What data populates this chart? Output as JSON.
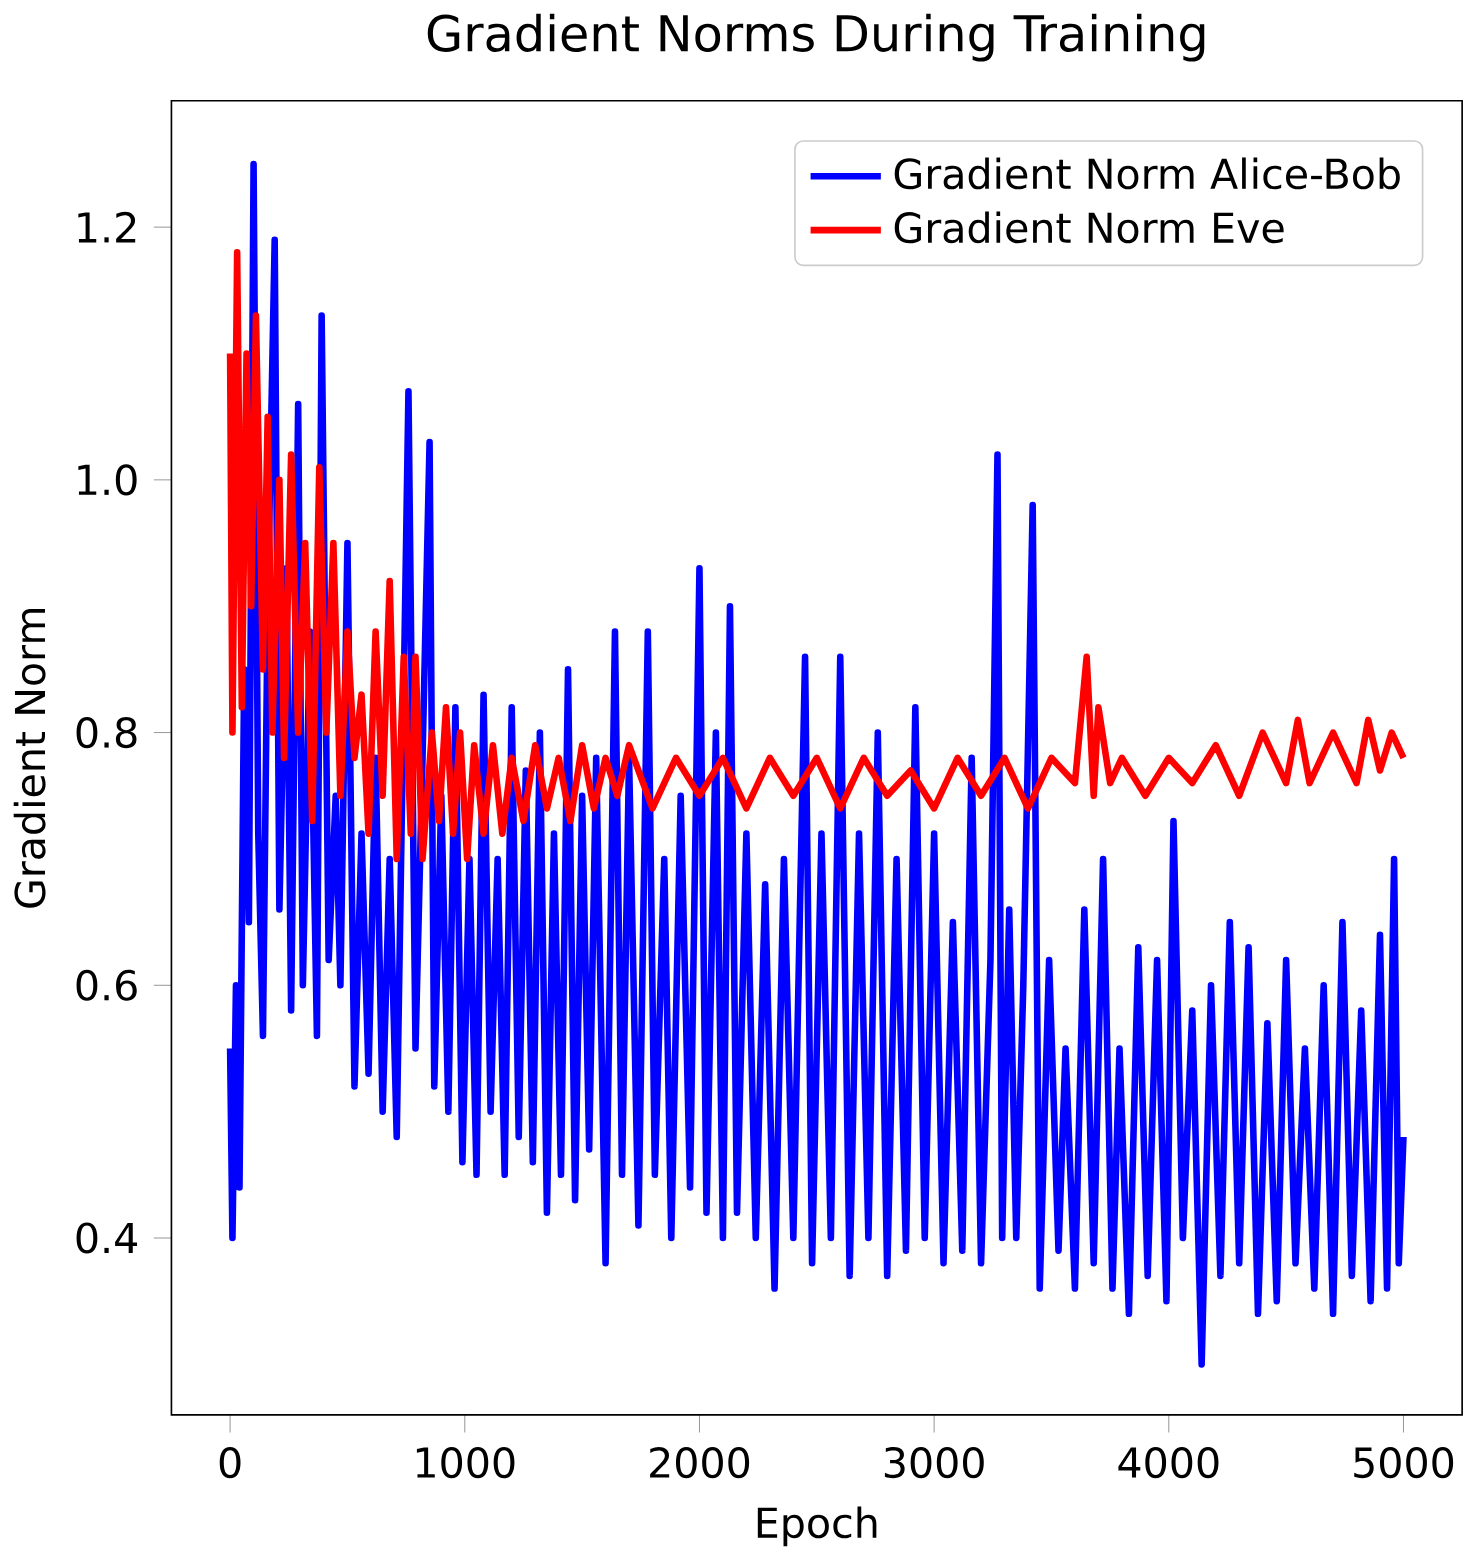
{
  "chart_data": {
    "type": "line",
    "title": "Gradient Norms During Training",
    "xlabel": "Epoch",
    "ylabel": "Gradient Norm",
    "xlim": [
      -250,
      5250
    ],
    "ylim": [
      0.26,
      1.3
    ],
    "xticks": [
      0,
      1000,
      2000,
      3000,
      4000,
      5000
    ],
    "yticks": [
      0.4,
      0.6,
      0.8,
      {
        "value": 1.0,
        "label": "1.0"
      },
      1.2
    ],
    "legend": "top right",
    "grid": false,
    "series": [
      {
        "name": "Gradient Norm Alice-Bob",
        "color": "#0000ff",
        "x": [
          0,
          10,
          25,
          40,
          60,
          80,
          100,
          120,
          140,
          160,
          190,
          210,
          240,
          260,
          290,
          310,
          340,
          370,
          390,
          420,
          450,
          470,
          500,
          530,
          560,
          590,
          620,
          650,
          680,
          710,
          760,
          790,
          820,
          850,
          870,
          900,
          930,
          960,
          990,
          1020,
          1050,
          1080,
          1110,
          1140,
          1170,
          1200,
          1230,
          1260,
          1290,
          1320,
          1350,
          1380,
          1410,
          1440,
          1470,
          1500,
          1530,
          1560,
          1600,
          1640,
          1670,
          1700,
          1740,
          1780,
          1810,
          1850,
          1880,
          1920,
          1960,
          2000,
          2030,
          2070,
          2100,
          2130,
          2160,
          2200,
          2240,
          2280,
          2320,
          2360,
          2400,
          2450,
          2480,
          2520,
          2560,
          2600,
          2640,
          2680,
          2720,
          2760,
          2800,
          2840,
          2880,
          2920,
          2960,
          3000,
          3040,
          3080,
          3120,
          3160,
          3200,
          3240,
          3270,
          3290,
          3320,
          3350,
          3380,
          3420,
          3450,
          3490,
          3530,
          3560,
          3600,
          3640,
          3680,
          3720,
          3760,
          3790,
          3830,
          3870,
          3910,
          3950,
          3990,
          4020,
          4060,
          4100,
          4140,
          4180,
          4220,
          4260,
          4300,
          4340,
          4380,
          4420,
          4460,
          4500,
          4540,
          4580,
          4620,
          4660,
          4700,
          4740,
          4780,
          4820,
          4860,
          4900,
          4930,
          4960,
          4980,
          5000
        ],
        "values": [
          0.55,
          0.4,
          0.6,
          0.44,
          0.85,
          0.65,
          1.25,
          0.72,
          0.56,
          0.9,
          1.19,
          0.66,
          0.93,
          0.58,
          1.06,
          0.6,
          0.88,
          0.56,
          1.13,
          0.62,
          0.75,
          0.6,
          0.95,
          0.52,
          0.72,
          0.53,
          0.78,
          0.5,
          0.7,
          0.48,
          1.07,
          0.55,
          0.78,
          1.03,
          0.52,
          0.75,
          0.5,
          0.82,
          0.46,
          0.7,
          0.45,
          0.83,
          0.5,
          0.7,
          0.45,
          0.82,
          0.48,
          0.77,
          0.46,
          0.8,
          0.42,
          0.72,
          0.45,
          0.85,
          0.43,
          0.75,
          0.47,
          0.78,
          0.38,
          0.88,
          0.45,
          0.78,
          0.41,
          0.88,
          0.45,
          0.7,
          0.4,
          0.75,
          0.44,
          0.93,
          0.42,
          0.8,
          0.4,
          0.9,
          0.42,
          0.72,
          0.4,
          0.68,
          0.36,
          0.7,
          0.4,
          0.86,
          0.38,
          0.72,
          0.4,
          0.86,
          0.37,
          0.72,
          0.4,
          0.8,
          0.37,
          0.7,
          0.39,
          0.82,
          0.4,
          0.72,
          0.38,
          0.65,
          0.39,
          0.78,
          0.38,
          0.62,
          1.02,
          0.4,
          0.66,
          0.4,
          0.6,
          0.98,
          0.36,
          0.62,
          0.39,
          0.55,
          0.36,
          0.66,
          0.38,
          0.7,
          0.36,
          0.55,
          0.34,
          0.63,
          0.37,
          0.62,
          0.35,
          0.73,
          0.4,
          0.58,
          0.3,
          0.6,
          0.37,
          0.65,
          0.38,
          0.63,
          0.34,
          0.57,
          0.35,
          0.62,
          0.38,
          0.55,
          0.36,
          0.6,
          0.34,
          0.65,
          0.37,
          0.58,
          0.35,
          0.64,
          0.36,
          0.7,
          0.38,
          0.48
        ]
      },
      {
        "name": "Gradient Norm Eve",
        "color": "#ff0000",
        "x": [
          0,
          10,
          30,
          50,
          70,
          90,
          110,
          140,
          160,
          180,
          210,
          230,
          260,
          290,
          320,
          350,
          380,
          410,
          440,
          470,
          500,
          530,
          560,
          590,
          620,
          650,
          680,
          710,
          740,
          770,
          790,
          820,
          860,
          890,
          920,
          950,
          980,
          1010,
          1040,
          1080,
          1120,
          1160,
          1200,
          1250,
          1300,
          1350,
          1400,
          1450,
          1500,
          1550,
          1600,
          1650,
          1700,
          1800,
          1900,
          2000,
          2100,
          2200,
          2300,
          2400,
          2500,
          2600,
          2700,
          2800,
          2900,
          3000,
          3100,
          3200,
          3300,
          3400,
          3500,
          3600,
          3650,
          3680,
          3700,
          3750,
          3800,
          3900,
          4000,
          4100,
          4200,
          4300,
          4400,
          4500,
          4550,
          4600,
          4700,
          4800,
          4850,
          4900,
          4950,
          5000
        ],
        "values": [
          1.1,
          0.8,
          1.18,
          0.82,
          1.1,
          0.9,
          1.13,
          0.85,
          1.05,
          0.8,
          1.0,
          0.78,
          1.02,
          0.8,
          0.95,
          0.73,
          1.01,
          0.8,
          0.95,
          0.75,
          0.88,
          0.78,
          0.83,
          0.72,
          0.88,
          0.75,
          0.92,
          0.7,
          0.86,
          0.72,
          0.86,
          0.7,
          0.8,
          0.73,
          0.82,
          0.72,
          0.8,
          0.7,
          0.79,
          0.72,
          0.79,
          0.72,
          0.78,
          0.73,
          0.79,
          0.74,
          0.78,
          0.73,
          0.79,
          0.74,
          0.78,
          0.75,
          0.79,
          0.74,
          0.78,
          0.75,
          0.78,
          0.74,
          0.78,
          0.75,
          0.78,
          0.74,
          0.78,
          0.75,
          0.77,
          0.74,
          0.78,
          0.75,
          0.78,
          0.74,
          0.78,
          0.76,
          0.86,
          0.75,
          0.82,
          0.76,
          0.78,
          0.75,
          0.78,
          0.76,
          0.79,
          0.75,
          0.8,
          0.76,
          0.81,
          0.76,
          0.8,
          0.76,
          0.81,
          0.77,
          0.8,
          0.78
        ]
      }
    ]
  }
}
